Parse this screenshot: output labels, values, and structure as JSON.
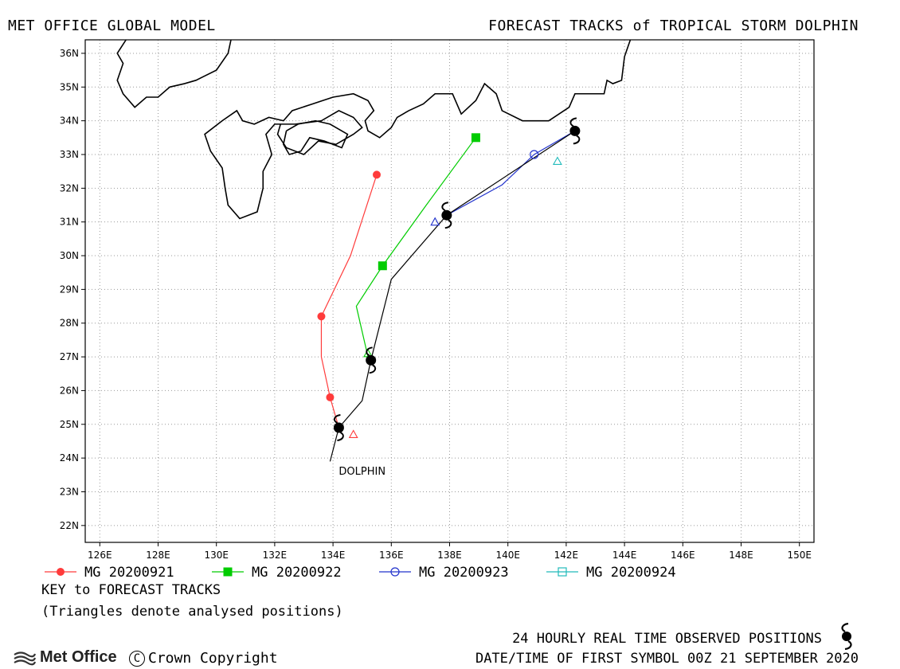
{
  "header": {
    "left_title": "MET OFFICE GLOBAL MODEL",
    "right_title": "FORECAST TRACKS of TROPICAL STORM DOLPHIN"
  },
  "map": {
    "lon_range": [
      125.5,
      150.5
    ],
    "lat_range": [
      21.5,
      36.4
    ],
    "x_ticks": [
      "126E",
      "128E",
      "130E",
      "132E",
      "134E",
      "136E",
      "138E",
      "140E",
      "142E",
      "144E",
      "146E",
      "148E",
      "150E"
    ],
    "y_ticks": [
      "36N",
      "35N",
      "34N",
      "33N",
      "32N",
      "31N",
      "30N",
      "29N",
      "28N",
      "27N",
      "26N",
      "25N",
      "24N",
      "23N",
      "22N"
    ],
    "x_tick_values": [
      126,
      128,
      130,
      132,
      134,
      136,
      138,
      140,
      142,
      144,
      146,
      148,
      150
    ],
    "y_tick_values": [
      36,
      35,
      34,
      33,
      32,
      31,
      30,
      29,
      28,
      27,
      26,
      25,
      24,
      23,
      22
    ],
    "grid": "dotted",
    "storm_label": "DOLPHIN",
    "storm_label_pos": [
      134.2,
      23.6
    ]
  },
  "chart_data": {
    "type": "map",
    "observed_track": {
      "color": "#000000",
      "points": [
        [
          133.9,
          23.9
        ],
        [
          134.2,
          24.9
        ],
        [
          135.0,
          25.7
        ],
        [
          135.3,
          26.9
        ],
        [
          136.0,
          29.3
        ],
        [
          137.9,
          31.2
        ],
        [
          142.3,
          33.7
        ]
      ],
      "symbol_points": [
        [
          134.2,
          24.9
        ],
        [
          135.3,
          26.9
        ],
        [
          137.9,
          31.2
        ],
        [
          142.3,
          33.7
        ]
      ]
    },
    "forecasts": [
      {
        "name": "MG 20200921",
        "color": "#ff3b3b",
        "marker": "circle",
        "track": [
          [
            134.2,
            24.9
          ],
          [
            133.9,
            25.8
          ],
          [
            133.6,
            27.0
          ],
          [
            133.6,
            28.2
          ],
          [
            134.6,
            30.0
          ],
          [
            135.5,
            32.4
          ]
        ],
        "markers": [
          [
            133.9,
            25.8
          ],
          [
            133.6,
            28.2
          ],
          [
            135.5,
            32.4
          ]
        ],
        "analysed": [
          [
            134.7,
            24.7
          ]
        ]
      },
      {
        "name": "MG 20200922",
        "color": "#00cc00",
        "marker": "square",
        "track": [
          [
            135.3,
            26.9
          ],
          [
            135.2,
            27.0
          ],
          [
            134.8,
            28.5
          ],
          [
            135.7,
            29.7
          ],
          [
            137.2,
            31.5
          ],
          [
            138.9,
            33.5
          ]
        ],
        "markers": [
          [
            135.7,
            29.7
          ],
          [
            138.9,
            33.5
          ]
        ],
        "analysed": [
          [
            135.2,
            27.1
          ]
        ]
      },
      {
        "name": "MG 20200923",
        "color": "#2233cc",
        "marker": "circle-open",
        "track": [
          [
            137.9,
            31.2
          ],
          [
            139.8,
            32.1
          ],
          [
            140.9,
            33.0
          ],
          [
            142.3,
            33.7
          ]
        ],
        "markers": [
          [
            140.9,
            33.0
          ]
        ],
        "analysed": [
          [
            137.5,
            31.0
          ]
        ]
      },
      {
        "name": "MG 20200924",
        "color": "#22bbbb",
        "marker": "square-open",
        "track": [],
        "markers": [],
        "analysed": [
          [
            141.7,
            32.8
          ]
        ]
      }
    ]
  },
  "legend": {
    "items": [
      {
        "label": "MG 20200921",
        "color": "#ff3b3b",
        "marker": "circle"
      },
      {
        "label": "MG 20200922",
        "color": "#00cc00",
        "marker": "square"
      },
      {
        "label": "MG 20200923",
        "color": "#2233cc",
        "marker": "circle-open"
      },
      {
        "label": "MG 20200924",
        "color": "#22bbbb",
        "marker": "square-open"
      }
    ]
  },
  "footer": {
    "key_title": "KEY to FORECAST TRACKS",
    "key_note": "(Triangles denote analysed positions)",
    "observed_label": "24 HOURLY REAL TIME OBSERVED POSITIONS",
    "date_label": "DATE/TIME OF FIRST SYMBOL 00Z 21 SEPTEMBER 2020",
    "logo_text": "Met Office",
    "copyright_text": "Crown Copyright",
    "copyright_symbol": "C"
  },
  "coastlines": [
    [
      [
        130.5,
        36.4
      ],
      [
        130.4,
        36.0
      ],
      [
        130.0,
        35.5
      ],
      [
        129.3,
        35.2
      ],
      [
        128.9,
        35.1
      ],
      [
        128.4,
        35.0
      ],
      [
        128.0,
        34.7
      ],
      [
        127.6,
        34.7
      ],
      [
        127.2,
        34.4
      ],
      [
        126.8,
        34.8
      ],
      [
        126.6,
        35.2
      ],
      [
        126.8,
        35.7
      ],
      [
        126.6,
        36.0
      ],
      [
        126.9,
        36.4
      ]
    ],
    [
      [
        144.2,
        36.4
      ],
      [
        144.0,
        35.9
      ],
      [
        143.9,
        35.2
      ],
      [
        143.6,
        35.1
      ],
      [
        143.4,
        35.2
      ],
      [
        143.3,
        34.8
      ],
      [
        142.3,
        34.8
      ],
      [
        142.1,
        34.4
      ],
      [
        141.4,
        34.0
      ],
      [
        140.5,
        34.0
      ],
      [
        139.8,
        34.3
      ],
      [
        139.6,
        34.8
      ],
      [
        139.2,
        35.1
      ],
      [
        138.9,
        34.6
      ],
      [
        138.4,
        34.2
      ],
      [
        138.1,
        34.8
      ],
      [
        137.5,
        34.8
      ],
      [
        137.1,
        34.5
      ],
      [
        136.6,
        34.3
      ],
      [
        136.2,
        34.1
      ],
      [
        136.0,
        33.8
      ],
      [
        135.6,
        33.5
      ],
      [
        135.2,
        33.7
      ],
      [
        135.1,
        34.0
      ],
      [
        135.4,
        34.3
      ],
      [
        135.2,
        34.6
      ],
      [
        134.7,
        34.8
      ],
      [
        134.0,
        34.7
      ],
      [
        133.3,
        34.5
      ],
      [
        132.6,
        34.3
      ],
      [
        132.3,
        34.0
      ],
      [
        131.8,
        34.1
      ],
      [
        131.3,
        33.9
      ],
      [
        130.9,
        34.0
      ],
      [
        130.7,
        34.3
      ],
      [
        130.2,
        34.0
      ],
      [
        129.6,
        33.6
      ],
      [
        129.8,
        33.1
      ],
      [
        130.2,
        32.6
      ],
      [
        130.3,
        32.0
      ],
      [
        130.4,
        31.5
      ],
      [
        130.8,
        31.1
      ],
      [
        131.4,
        31.3
      ],
      [
        131.6,
        32.0
      ],
      [
        131.6,
        32.5
      ],
      [
        131.9,
        33.0
      ],
      [
        131.7,
        33.6
      ],
      [
        132.0,
        33.9
      ],
      [
        132.7,
        33.9
      ],
      [
        133.6,
        34.0
      ],
      [
        134.2,
        34.3
      ],
      [
        134.7,
        34.1
      ],
      [
        135.0,
        33.8
      ],
      [
        134.7,
        33.6
      ],
      [
        134.1,
        33.3
      ],
      [
        133.5,
        33.4
      ],
      [
        133.0,
        33.0
      ],
      [
        132.4,
        33.2
      ],
      [
        132.1,
        33.6
      ],
      [
        132.2,
        33.9
      ],
      [
        132.7,
        33.9
      ]
    ],
    [
      [
        132.4,
        33.7
      ],
      [
        132.8,
        33.9
      ],
      [
        133.4,
        34.0
      ],
      [
        133.9,
        33.9
      ],
      [
        134.5,
        33.6
      ],
      [
        134.3,
        33.2
      ],
      [
        133.7,
        33.4
      ],
      [
        133.2,
        33.5
      ],
      [
        132.9,
        33.1
      ],
      [
        132.5,
        33.0
      ],
      [
        132.3,
        33.3
      ],
      [
        132.4,
        33.7
      ]
    ]
  ]
}
